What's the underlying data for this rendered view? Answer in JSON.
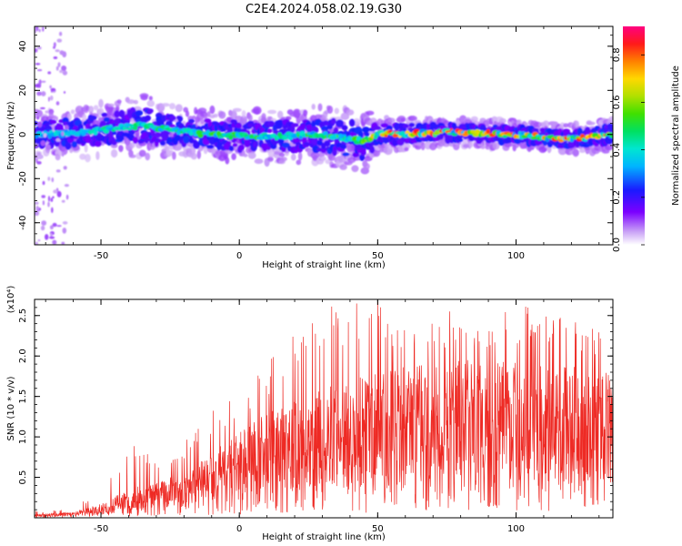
{
  "title": "C2E4.2024.058.02.19.G30",
  "chart_data": [
    {
      "type": "heatmap",
      "xlabel": "Height of straight line (km)",
      "ylabel": "Frequency (Hz)",
      "xlim": [
        -74,
        135
      ],
      "ylim": [
        -50,
        49
      ],
      "xticks": [
        -50,
        0,
        50,
        100
      ],
      "yticks": [
        -40,
        -20,
        0,
        20,
        40
      ],
      "colorbar": {
        "label": "Normalized spectral amplitude",
        "range": [
          0,
          0.92
        ],
        "ticks": [
          0.0,
          0.2,
          0.4,
          0.6,
          0.8
        ]
      },
      "ridge": [
        {
          "x": -70,
          "center_freq": 0,
          "bandwidth": 8,
          "peak_amplitude": 0.4
        },
        {
          "x": -55,
          "center_freq": 1,
          "bandwidth": 9,
          "peak_amplitude": 0.45
        },
        {
          "x": -45,
          "center_freq": 3,
          "bandwidth": 10,
          "peak_amplitude": 0.5
        },
        {
          "x": -35,
          "center_freq": 4,
          "bandwidth": 11,
          "peak_amplitude": 0.5
        },
        {
          "x": -25,
          "center_freq": 2,
          "bandwidth": 9,
          "peak_amplitude": 0.5
        },
        {
          "x": -10,
          "center_freq": 0,
          "bandwidth": 9,
          "peak_amplitude": 0.55
        },
        {
          "x": 10,
          "center_freq": -1,
          "bandwidth": 9,
          "peak_amplitude": 0.55
        },
        {
          "x": 30,
          "center_freq": 0,
          "bandwidth": 10,
          "peak_amplitude": 0.55
        },
        {
          "x": 45,
          "center_freq": -3,
          "bandwidth": 11,
          "peak_amplitude": 0.6
        },
        {
          "x": 50,
          "center_freq": 0,
          "bandwidth": 6,
          "peak_amplitude": 0.9
        },
        {
          "x": 75,
          "center_freq": 1,
          "bandwidth": 5,
          "peak_amplitude": 0.9
        },
        {
          "x": 100,
          "center_freq": 0,
          "bandwidth": 5,
          "peak_amplitude": 0.85
        },
        {
          "x": 120,
          "center_freq": -2,
          "bandwidth": 5,
          "peak_amplitude": 0.85
        },
        {
          "x": 135,
          "center_freq": 0,
          "bandwidth": 6,
          "peak_amplitude": 0.85
        }
      ]
    },
    {
      "type": "line",
      "xlabel": "Height of straight line (km)",
      "ylabel": "SNR (10 * v/v)",
      "y_multiplier": "(x10⁴)",
      "xlim": [
        -74,
        135
      ],
      "ylim": [
        0,
        2.7
      ],
      "xticks": [
        -50,
        0,
        50,
        100
      ],
      "yticks": [
        0.5,
        1.0,
        1.5,
        2.0,
        2.5
      ],
      "color": "#ee2a24",
      "envelope": {
        "x": [
          -74,
          -60,
          -50,
          -40,
          -30,
          -20,
          -10,
          0,
          10,
          20,
          30,
          40,
          50,
          60,
          70,
          80,
          90,
          100,
          110,
          120,
          130,
          135
        ],
        "y_mean": [
          0.03,
          0.05,
          0.12,
          0.25,
          0.3,
          0.4,
          0.55,
          0.75,
          0.9,
          1.0,
          1.1,
          1.2,
          1.25,
          1.3,
          1.3,
          1.35,
          1.35,
          1.35,
          1.3,
          1.3,
          1.25,
          1.25
        ],
        "y_max": [
          0.08,
          0.12,
          0.35,
          0.95,
          0.8,
          0.95,
          1.35,
          1.55,
          1.9,
          2.4,
          2.7,
          2.7,
          2.7,
          2.5,
          2.6,
          2.6,
          2.5,
          2.7,
          2.5,
          2.5,
          2.45,
          2.4
        ]
      }
    }
  ]
}
